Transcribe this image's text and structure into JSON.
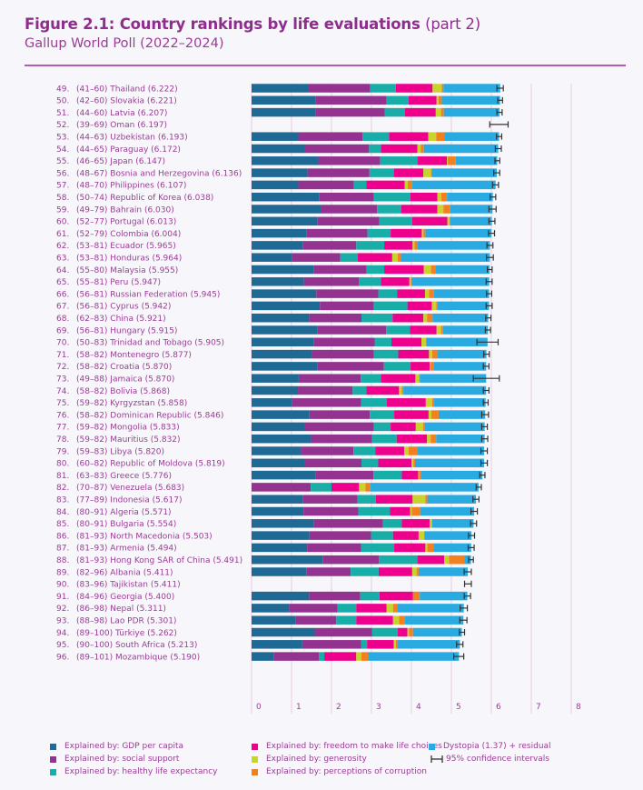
{
  "title": {
    "main": "Figure 2.1: Country rankings by life evaluations",
    "part": "(part 2)"
  },
  "subtitle": "Gallup World Poll (2022–2024)",
  "colors": {
    "gdp": "#1f6a94",
    "social": "#93338f",
    "health": "#19ada8",
    "freedom": "#ec008c",
    "generosity": "#c8d42b",
    "corruption": "#f3801f",
    "dystopia": "#29abe2",
    "ci": "#333333"
  },
  "chart_data": {
    "type": "bar",
    "orientation": "horizontal-stacked",
    "xlim": [
      0,
      8
    ],
    "xticks": [
      "0",
      "1",
      "2",
      "3",
      "4",
      "5",
      "6",
      "7",
      "8"
    ],
    "grid": true,
    "legend_position": "bottom",
    "series_names": [
      "Explained by: GDP per capita",
      "Explained by: social support",
      "Explained by: healthy life expectancy",
      "Explained by: freedom to make life choices",
      "Explained by: generosity",
      "Explained by: perceptions of corruption",
      "Dystopia (1.37) + residual"
    ],
    "ci_legend": "95% confidence intervals",
    "rows": [
      {
        "rank": "49.",
        "label": "(41–60) Thailand (6.222)",
        "score": 6.222,
        "parts": [
          1.42,
          1.55,
          0.64,
          0.92,
          0.23,
          0.04
        ],
        "ci": [
          6.14,
          6.3
        ]
      },
      {
        "rank": "50.",
        "label": "(42–60) Slovakia (6.221)",
        "score": 6.221,
        "parts": [
          1.61,
          1.77,
          0.55,
          0.7,
          0.05,
          0.08
        ],
        "ci": [
          6.16,
          6.28
        ]
      },
      {
        "rank": "51.",
        "label": "(44–60) Latvia (6.207)",
        "score": 6.207,
        "parts": [
          1.61,
          1.72,
          0.51,
          0.77,
          0.13,
          0.07
        ],
        "ci": [
          6.14,
          6.27
        ]
      },
      {
        "rank": "52.",
        "label": "(39–69) Oman (6.197)",
        "score": 6.197,
        "parts": null,
        "ci": [
          5.96,
          6.42
        ]
      },
      {
        "rank": "53.",
        "label": "(44–63) Uzbekistan (6.193)",
        "score": 6.193,
        "parts": [
          1.17,
          1.61,
          0.66,
          0.98,
          0.2,
          0.2
        ],
        "ci": [
          6.13,
          6.26
        ]
      },
      {
        "rank": "54.",
        "label": "(44–65) Paraguay (6.172)",
        "score": 6.172,
        "parts": [
          1.33,
          1.61,
          0.3,
          0.91,
          0.08,
          0.08
        ],
        "ci": [
          6.1,
          6.25
        ]
      },
      {
        "rank": "55.",
        "label": "(46–65) Japan (6.147)",
        "score": 6.147,
        "parts": [
          1.67,
          1.55,
          0.93,
          0.74,
          0.02,
          0.2
        ],
        "ci": [
          6.09,
          6.21
        ]
      },
      {
        "rank": "56.",
        "label": "(48–67) Bosnia and Herzegovina (6.136)",
        "score": 6.136,
        "parts": [
          1.4,
          1.55,
          0.61,
          0.74,
          0.19,
          0.02
        ],
        "ci": [
          6.06,
          6.21
        ]
      },
      {
        "rank": "57.",
        "label": "(48–70) Philippines (6.107)",
        "score": 6.107,
        "parts": [
          1.17,
          1.39,
          0.31,
          0.96,
          0.08,
          0.11
        ],
        "ci": [
          6.03,
          6.18
        ]
      },
      {
        "rank": "58.",
        "label": "(50–74) Republic of Korea (6.038)",
        "score": 6.038,
        "parts": [
          1.7,
          1.36,
          0.91,
          0.68,
          0.1,
          0.14
        ],
        "ci": [
          5.97,
          6.11
        ]
      },
      {
        "rank": "59.",
        "label": "(49–79) Bahrain (6.030)",
        "score": 6.03,
        "parts": [
          1.74,
          1.4,
          0.61,
          0.9,
          0.15,
          0.17
        ],
        "ci": [
          5.94,
          6.12
        ]
      },
      {
        "rank": "60.",
        "label": "(52–77) Portugal (6.013)",
        "score": 6.013,
        "parts": [
          1.64,
          1.56,
          0.82,
          0.88,
          0.05,
          0.02
        ],
        "ci": [
          5.94,
          6.09
        ]
      },
      {
        "rank": "61.",
        "label": "(52–79) Colombia (6.004)",
        "score": 6.004,
        "parts": [
          1.38,
          1.52,
          0.58,
          0.78,
          0.04,
          0.05
        ],
        "ci": [
          5.93,
          6.08
        ]
      },
      {
        "rank": "62.",
        "label": "(53–81) Ecuador (5.965)",
        "score": 5.965,
        "parts": [
          1.29,
          1.33,
          0.7,
          0.71,
          0.05,
          0.07
        ],
        "ci": [
          5.89,
          6.04
        ]
      },
      {
        "rank": "63.",
        "label": "(53–81) Honduras (5.964)",
        "score": 5.964,
        "parts": [
          1.02,
          1.2,
          0.44,
          0.86,
          0.14,
          0.08
        ],
        "ci": [
          5.88,
          6.05
        ]
      },
      {
        "rank": "64.",
        "label": "(55–80) Malaysia (5.955)",
        "score": 5.955,
        "parts": [
          1.55,
          1.33,
          0.44,
          0.99,
          0.18,
          0.11
        ],
        "ci": [
          5.9,
          6.02
        ]
      },
      {
        "rank": "65.",
        "label": "(55–81) Peru (5.947)",
        "score": 5.947,
        "parts": [
          1.31,
          1.38,
          0.55,
          0.71,
          0.04,
          0.02
        ],
        "ci": [
          5.87,
          6.02
        ]
      },
      {
        "rank": "66.",
        "label": "(56–81) Russian Federation (5.945)",
        "score": 5.945,
        "parts": [
          1.62,
          1.55,
          0.47,
          0.7,
          0.1,
          0.12
        ],
        "ci": [
          5.88,
          6.01
        ]
      },
      {
        "rank": "67.",
        "label": "(56–81) Cyprus (5.942)",
        "score": 5.942,
        "parts": [
          1.71,
          1.35,
          0.84,
          0.61,
          0.11,
          0.04
        ],
        "ci": [
          5.87,
          6.02
        ]
      },
      {
        "rank": "68.",
        "label": "(62–83) China (5.921)",
        "score": 5.921,
        "parts": [
          1.44,
          1.31,
          0.78,
          0.77,
          0.09,
          0.14
        ],
        "ci": [
          5.86,
          5.99
        ]
      },
      {
        "rank": "69.",
        "label": "(56–81) Hungary (5.915)",
        "score": 5.915,
        "parts": [
          1.64,
          1.73,
          0.59,
          0.67,
          0.11,
          0.05
        ],
        "ci": [
          5.85,
          5.98
        ]
      },
      {
        "rank": "70.",
        "label": "(50–83) Trinidad and Tobago (5.905)",
        "score": 5.905,
        "parts": [
          1.55,
          1.53,
          0.42,
          0.75,
          0.11,
          0.01
        ],
        "ci": [
          5.64,
          6.17
        ]
      },
      {
        "rank": "71.",
        "label": "(58–82) Montenegro (5.877)",
        "score": 5.877,
        "parts": [
          1.51,
          1.55,
          0.61,
          0.77,
          0.08,
          0.14
        ],
        "ci": [
          5.81,
          5.95
        ]
      },
      {
        "rank": "72.",
        "label": "(58–82) Croatia (5.870)",
        "score": 5.87,
        "parts": [
          1.64,
          1.67,
          0.67,
          0.48,
          0.02,
          0.07
        ],
        "ci": [
          5.8,
          5.94
        ]
      },
      {
        "rank": "73.",
        "label": "(49–88) Jamaica (5.870)",
        "score": 5.87,
        "parts": [
          1.18,
          1.55,
          0.51,
          0.86,
          0.09,
          0.02
        ],
        "ci": [
          5.55,
          6.2
        ]
      },
      {
        "rank": "74.",
        "label": "(58–82) Bolivia (5.868)",
        "score": 5.868,
        "parts": [
          1.16,
          1.37,
          0.34,
          0.82,
          0.07,
          0.04
        ],
        "ci": [
          5.8,
          5.94
        ]
      },
      {
        "rank": "75.",
        "label": "(59–82) Kyrgyzstan (5.858)",
        "score": 5.858,
        "parts": [
          1.02,
          1.72,
          0.64,
          0.98,
          0.16,
          0.05
        ],
        "ci": [
          5.8,
          5.92
        ]
      },
      {
        "rank": "76.",
        "label": "(58–82) Dominican Republic (5.846)",
        "score": 5.846,
        "parts": [
          1.45,
          1.51,
          0.61,
          0.86,
          0.07,
          0.18
        ],
        "ci": [
          5.76,
          5.93
        ]
      },
      {
        "rank": "77.",
        "label": "(59–82) Mongolia (5.833)",
        "score": 5.833,
        "parts": [
          1.33,
          1.73,
          0.42,
          0.63,
          0.18,
          0.05
        ],
        "ci": [
          5.76,
          5.9
        ]
      },
      {
        "rank": "78.",
        "label": "(59–82) Mauritius (5.832)",
        "score": 5.832,
        "parts": [
          1.49,
          1.52,
          0.62,
          0.76,
          0.09,
          0.14
        ],
        "ci": [
          5.76,
          5.91
        ]
      },
      {
        "rank": "79.",
        "label": "(59–83) Libya (5.820)",
        "score": 5.82,
        "parts": [
          1.24,
          1.31,
          0.55,
          0.72,
          0.11,
          0.21
        ],
        "ci": [
          5.74,
          5.9
        ]
      },
      {
        "rank": "80.",
        "label": "(60–82) Republic of Moldova (5.819)",
        "score": 5.819,
        "parts": [
          1.33,
          1.42,
          0.42,
          0.83,
          0.05,
          0.04
        ],
        "ci": [
          5.74,
          5.9
        ]
      },
      {
        "rank": "81.",
        "label": "(63–83) Greece (5.776)",
        "score": 5.776,
        "parts": [
          1.61,
          1.44,
          0.71,
          0.41,
          0.02,
          0.06
        ],
        "ci": [
          5.71,
          5.84
        ]
      },
      {
        "rank": "82.",
        "label": "(70–87) Venezuela (5.683)",
        "score": 5.683,
        "parts": [
          0.0,
          1.48,
          0.52,
          0.69,
          0.16,
          0.12
        ],
        "ci": [
          5.62,
          5.75
        ]
      },
      {
        "rank": "83.",
        "label": "(77–89) Indonesia (5.617)",
        "score": 5.617,
        "parts": [
          1.29,
          1.36,
          0.46,
          0.92,
          0.32,
          0.05
        ],
        "ci": [
          5.54,
          5.69
        ]
      },
      {
        "rank": "84.",
        "label": "(80–91) Algeria (5.571)",
        "score": 5.571,
        "parts": [
          1.3,
          1.37,
          0.79,
          0.51,
          0.04,
          0.21
        ],
        "ci": [
          5.49,
          5.65
        ]
      },
      {
        "rank": "85.",
        "label": "(80–91) Bulgaria (5.554)",
        "score": 5.554,
        "parts": [
          1.56,
          1.73,
          0.47,
          0.7,
          0.05,
          0.01
        ],
        "ci": [
          5.48,
          5.63
        ]
      },
      {
        "rank": "86.",
        "label": "(81–93) North Macedonia (5.503)",
        "score": 5.503,
        "parts": [
          1.45,
          1.54,
          0.55,
          0.64,
          0.14,
          0.01
        ],
        "ci": [
          5.43,
          5.58
        ]
      },
      {
        "rank": "87.",
        "label": "(81–93) Armenia (5.494)",
        "score": 5.494,
        "parts": [
          1.39,
          1.35,
          0.83,
          0.78,
          0.05,
          0.15
        ],
        "ci": [
          5.42,
          5.57
        ]
      },
      {
        "rank": "88.",
        "label": "(81–93) Hong Kong SAR of China (5.491)",
        "score": 5.491,
        "parts": [
          1.79,
          1.4,
          0.96,
          0.67,
          0.12,
          0.39
        ],
        "ci": [
          5.43,
          5.55
        ]
      },
      {
        "rank": "89.",
        "label": "(82–96) Albania (5.411)",
        "score": 5.411,
        "parts": [
          1.37,
          1.11,
          0.7,
          0.84,
          0.11,
          0.05
        ],
        "ci": [
          5.32,
          5.5
        ]
      },
      {
        "rank": "90.",
        "label": "(83–96) Tajikistan (5.411)",
        "score": 5.411,
        "parts": null,
        "ci": [
          5.33,
          5.5
        ]
      },
      {
        "rank": "91.",
        "label": "(84–96) Georgia (5.400)",
        "score": 5.4,
        "parts": [
          1.44,
          1.28,
          0.48,
          0.84,
          0.0,
          0.17
        ],
        "ci": [
          5.32,
          5.48
        ]
      },
      {
        "rank": "92.",
        "label": "(86–98) Nepal (5.311)",
        "score": 5.311,
        "parts": [
          0.94,
          1.21,
          0.47,
          0.76,
          0.16,
          0.1
        ],
        "ci": [
          5.22,
          5.4
        ]
      },
      {
        "rank": "93.",
        "label": "(88–98) Lao PDR (5.301)",
        "score": 5.301,
        "parts": [
          1.11,
          1.01,
          0.5,
          0.92,
          0.15,
          0.15
        ],
        "ci": [
          5.21,
          5.39
        ]
      },
      {
        "rank": "94.",
        "label": "(89–100) Türkiye (5.262)",
        "score": 5.262,
        "parts": [
          1.58,
          1.44,
          0.64,
          0.24,
          0.04,
          0.1
        ],
        "ci": [
          5.2,
          5.33
        ]
      },
      {
        "rank": "95.",
        "label": "(90–100) South Africa (5.213)",
        "score": 5.213,
        "parts": [
          1.27,
          1.47,
          0.15,
          0.67,
          0.05,
          0.05
        ],
        "ci": [
          5.13,
          5.29
        ]
      },
      {
        "rank": "96.",
        "label": "(89–101) Mozambique (5.190)",
        "score": 5.19,
        "parts": [
          0.55,
          1.14,
          0.13,
          0.8,
          0.13,
          0.17
        ],
        "ci": [
          5.06,
          5.31
        ]
      }
    ]
  }
}
